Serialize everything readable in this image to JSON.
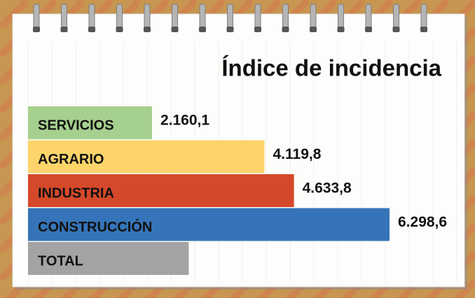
{
  "chart_data": {
    "type": "bar",
    "orientation": "horizontal",
    "title": "Índice de incidencia",
    "categories": [
      "SERVICIOS",
      "AGRARIO",
      "INDUSTRIA",
      "CONSTRUCCIÓN",
      "TOTAL"
    ],
    "values": [
      2160.1,
      4119.8,
      4633.8,
      6298.6,
      2800
    ],
    "value_labels": [
      "2.160,1",
      "4.119,8",
      "4.633,8",
      "6.298,6",
      null
    ],
    "colors": [
      "#a6d08e",
      "#fcd46a",
      "#d5492a",
      "#3574b8",
      "#a3a3a3"
    ]
  }
}
